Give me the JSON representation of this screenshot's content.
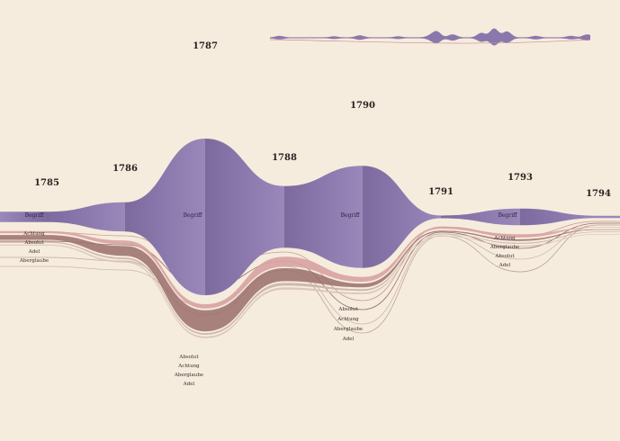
{
  "chart_data": {
    "type": "area",
    "title": "",
    "xlabel": "",
    "ylabel": "",
    "years": [
      "1785",
      "1786",
      "1787",
      "1788",
      "1790",
      "1791",
      "1793",
      "1794"
    ],
    "terms": [
      "Begriff",
      "Achtung",
      "Absolut",
      "Adel",
      "Aberglaube"
    ],
    "series": [
      {
        "name": "Begriff",
        "values": [
          19,
          54,
          290,
          114,
          189,
          5,
          31,
          4
        ]
      },
      {
        "name": "Achtung",
        "values": [
          4,
          7,
          8,
          18,
          9,
          3,
          6,
          1
        ]
      },
      {
        "name": "Absolut",
        "values": [
          9,
          18,
          39,
          24,
          7,
          2,
          3,
          1
        ]
      },
      {
        "name": "Adel",
        "values": [
          2,
          3,
          3,
          5,
          3,
          1,
          2,
          1
        ]
      },
      {
        "name": "Aberglaube",
        "values": [
          2,
          3,
          3,
          4,
          3,
          1,
          2,
          1
        ]
      }
    ],
    "label_groups": [
      {
        "year": "1785",
        "in_stream": "Begriff",
        "below": [
          "Achtung",
          "Absolut",
          "Adel",
          "Aberglaube"
        ]
      },
      {
        "year": "1787",
        "in_stream": "Begriff",
        "below": [
          "Absolut",
          "Achtung",
          "Aberglaube",
          "Adel"
        ]
      },
      {
        "year": "1790",
        "in_stream": "Begriff",
        "below": [
          "Absolut",
          "Achtung",
          "Aberglaube",
          "Adel"
        ]
      },
      {
        "year": "1793",
        "in_stream": "Begriff",
        "below": [
          "Achtung",
          "Aberglaube",
          "Absolut",
          "Adel"
        ]
      }
    ],
    "colors": {
      "background": "#f6ecdd",
      "begriff_dark": "#7c6a9f",
      "begriff_light": "#9a88bb",
      "achtung": "#d8a3a2",
      "absolut": "#9a6e6c",
      "adel": "#c9b2aa",
      "aberglaube": "#d9c3b9",
      "overview": "#8a78ad"
    },
    "legend": "none",
    "grid": false,
    "overview_strip": true
  }
}
